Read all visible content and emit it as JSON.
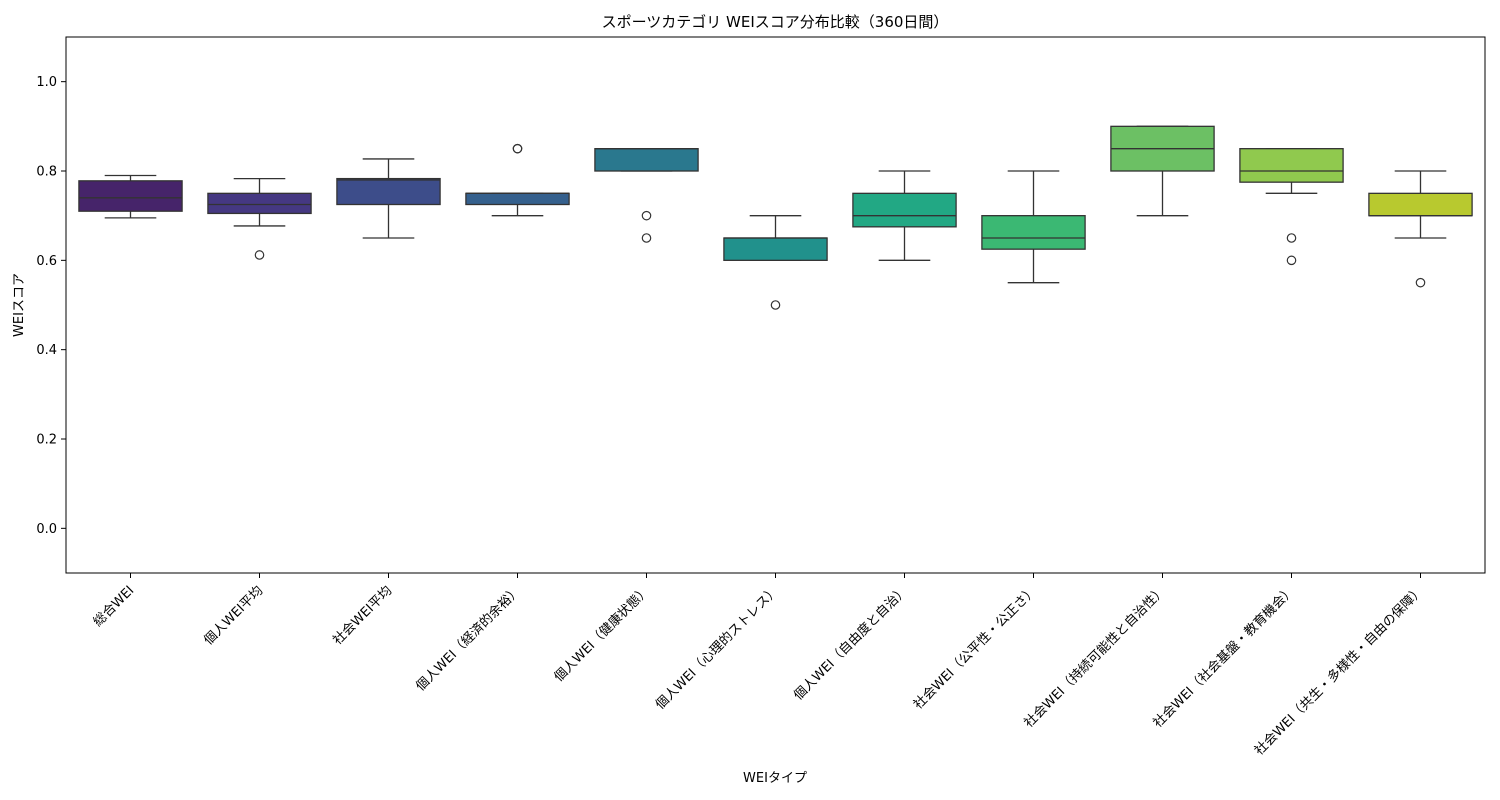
{
  "chart_data": {
    "type": "box",
    "title": "スポーツカテゴリ WEIスコア分布比較（360日間）",
    "xlabel": "WEIタイプ",
    "ylabel": "WEIスコア",
    "ylim": [
      -0.1,
      1.1
    ],
    "yticks": [
      "0.0",
      "0.2",
      "0.4",
      "0.6",
      "0.8",
      "1.0"
    ],
    "grid": false,
    "legend": "none",
    "series": [
      {
        "label": "総合WEI",
        "color": "#46246a",
        "whisker_low": 0.695,
        "q1": 0.71,
        "median": 0.74,
        "q3": 0.778,
        "whisker_high": 0.79,
        "outliers": []
      },
      {
        "label": "個人WEI平均",
        "color": "#453882",
        "whisker_low": 0.677,
        "q1": 0.705,
        "median": 0.725,
        "q3": 0.75,
        "whisker_high": 0.783,
        "outliers": [
          0.612
        ]
      },
      {
        "label": "社会WEI平均",
        "color": "#3d4d8a",
        "whisker_low": 0.65,
        "q1": 0.725,
        "median": 0.78,
        "q3": 0.783,
        "whisker_high": 0.827,
        "outliers": []
      },
      {
        "label": "個人WEI（経済的余裕）",
        "color": "#35608d",
        "whisker_low": 0.7,
        "q1": 0.725,
        "median": 0.75,
        "q3": 0.75,
        "whisker_high": 0.75,
        "outliers": [
          0.85,
          0.85
        ]
      },
      {
        "label": "個人WEI（健康状態）",
        "color": "#2a788e",
        "whisker_low": 0.8,
        "q1": 0.8,
        "median": 0.85,
        "q3": 0.85,
        "whisker_high": 0.85,
        "outliers": [
          0.7,
          0.65
        ]
      },
      {
        "label": "個人WEI（心理的ストレス）",
        "color": "#21918c",
        "whisker_low": 0.6,
        "q1": 0.6,
        "median": 0.65,
        "q3": 0.65,
        "whisker_high": 0.7,
        "outliers": [
          0.5
        ]
      },
      {
        "label": "個人WEI（自由度と自治）",
        "color": "#22a884",
        "whisker_low": 0.6,
        "q1": 0.675,
        "median": 0.7,
        "q3": 0.75,
        "whisker_high": 0.8,
        "outliers": []
      },
      {
        "label": "社会WEI（公平性・公正さ）",
        "color": "#3bb873",
        "whisker_low": 0.55,
        "q1": 0.625,
        "median": 0.65,
        "q3": 0.7,
        "whisker_high": 0.8,
        "outliers": []
      },
      {
        "label": "社会WEI（持続可能性と自治性）",
        "color": "#6cc064",
        "whisker_low": 0.7,
        "q1": 0.8,
        "median": 0.85,
        "q3": 0.9,
        "whisker_high": 0.9,
        "outliers": []
      },
      {
        "label": "社会WEI（社会基盤・教育機会）",
        "color": "#90c94e",
        "whisker_low": 0.75,
        "q1": 0.775,
        "median": 0.8,
        "q3": 0.85,
        "whisker_high": 0.85,
        "outliers": [
          0.65,
          0.6
        ]
      },
      {
        "label": "社会WEI（共生・多様性・自由の保障）",
        "color": "#b8c92f",
        "whisker_low": 0.65,
        "q1": 0.7,
        "median": 0.7,
        "q3": 0.75,
        "whisker_high": 0.8,
        "outliers": [
          0.55
        ]
      }
    ]
  }
}
